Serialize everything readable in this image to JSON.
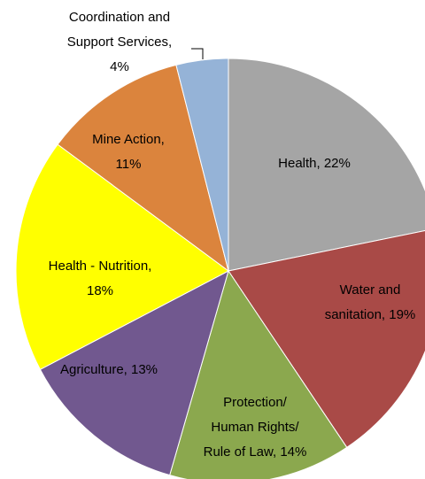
{
  "chart_data": {
    "type": "pie",
    "values": [
      22,
      19,
      14,
      13,
      18,
      11,
      4
    ],
    "value_labels": [
      [
        "Health, 22%"
      ],
      [
        "Water and",
        "sanitation, 19%"
      ],
      [
        "Protection/",
        "Human Rights/",
        "Rule of Law, 14%"
      ],
      [
        "Agriculture, 13%"
      ],
      [
        "Health - Nutrition,",
        "18%"
      ],
      [
        "Mine Action,",
        "11%"
      ],
      [
        "Coordination and",
        "Support Services,",
        "4%"
      ]
    ],
    "colors": [
      "#a5a5a5",
      "#a94a47",
      "#8ba84e",
      "#71588f",
      "#ffff00",
      "#db843d",
      "#95b3d7"
    ]
  }
}
